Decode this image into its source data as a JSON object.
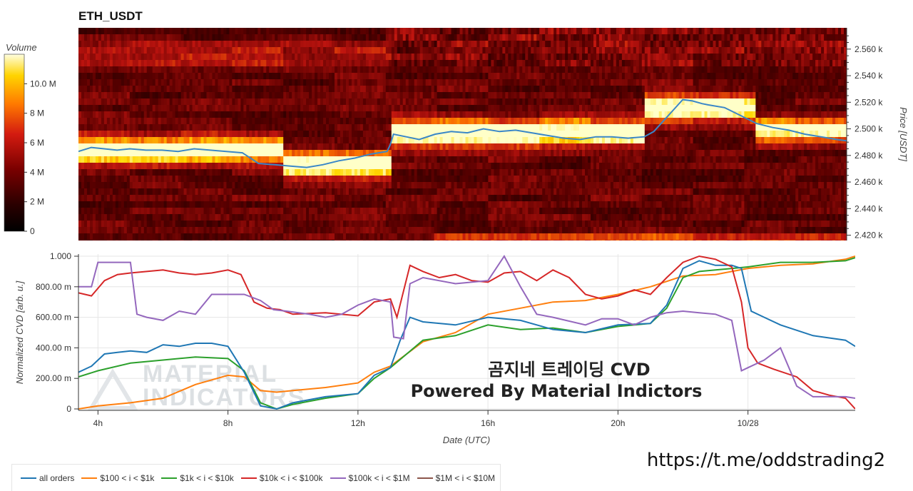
{
  "chart_data": [
    {
      "type": "heatmap",
      "title": "ETH_USDT",
      "ylabel": "Price [USDT]",
      "colorbar_label": "Volume",
      "colorbar_ticks": [
        "10.0 M",
        "8 M",
        "6 M",
        "4 M",
        "2 M",
        "0"
      ],
      "colorbar_values": [
        10,
        8,
        6,
        4,
        2,
        0
      ],
      "colorbar_range": [
        0,
        12
      ],
      "y_ticks": [
        "2.560 k",
        "2.540 k",
        "2.520 k",
        "2.500 k",
        "2.480 k",
        "2.460 k",
        "2.440 k",
        "2.420 k"
      ],
      "y_tick_values": [
        2560,
        2540,
        2520,
        2500,
        2480,
        2460,
        2440,
        2420
      ],
      "ylim": [
        2416,
        2576
      ],
      "x_range_hours": [
        3.4,
        27.3
      ],
      "price_series": {
        "x": [
          3.4,
          3.8,
          4.2,
          4.6,
          5.0,
          5.5,
          6.0,
          6.5,
          7.0,
          7.5,
          8.0,
          8.5,
          9.0,
          9.5,
          10.0,
          10.5,
          11.0,
          11.5,
          12.0,
          12.5,
          13.0,
          13.1,
          13.2,
          13.6,
          14.0,
          14.5,
          15.0,
          15.5,
          16.0,
          16.5,
          17.0,
          17.5,
          18.0,
          18.5,
          19.0,
          19.5,
          20.0,
          20.5,
          21.0,
          21.3,
          21.6,
          21.9,
          22.2,
          22.5,
          22.8,
          23.0,
          23.5,
          24.0,
          24.5,
          25.0,
          25.5,
          26.0,
          26.5,
          27.0,
          27.3
        ],
        "y": [
          2483,
          2486,
          2485,
          2484,
          2485,
          2484,
          2484,
          2483,
          2485,
          2484,
          2483,
          2482,
          2474,
          2473,
          2472,
          2471,
          2473,
          2476,
          2478,
          2481,
          2483,
          2488,
          2496,
          2494,
          2492,
          2496,
          2498,
          2497,
          2500,
          2498,
          2499,
          2497,
          2495,
          2493,
          2492,
          2494,
          2494,
          2493,
          2494,
          2498,
          2506,
          2514,
          2522,
          2521,
          2519,
          2518,
          2516,
          2510,
          2504,
          2501,
          2499,
          2496,
          2494,
          2492,
          2491
        ]
      },
      "bands": [
        {
          "x0": 3.4,
          "x1": 9.8,
          "center": 2484,
          "strength": 1.0
        },
        {
          "x0": 9.8,
          "x1": 13.1,
          "center": 2473,
          "strength": 0.9
        },
        {
          "x0": 13.1,
          "x1": 21.0,
          "center": 2497,
          "strength": 1.0
        },
        {
          "x0": 21.0,
          "x1": 24.5,
          "center": 2516,
          "strength": 1.0
        },
        {
          "x0": 24.5,
          "x1": 27.3,
          "center": 2499,
          "strength": 0.85
        }
      ]
    },
    {
      "type": "line",
      "ylabel": "Normalized CVD [arb. u.]",
      "xlabel": "Date (UTC)",
      "x_ticks": [
        "4h",
        "8h",
        "12h",
        "16h",
        "20h",
        "10/28"
      ],
      "x_tick_values": [
        4,
        8,
        12,
        16,
        20,
        24
      ],
      "y_ticks": [
        "1.000",
        "800.00 m",
        "600.00 m",
        "400.00 m",
        "200.00 m",
        "0"
      ],
      "y_tick_values": [
        1,
        0.8,
        0.6,
        0.4,
        0.2,
        0
      ],
      "ylim": [
        0,
        1
      ],
      "xlim": [
        3.4,
        27.3
      ],
      "series": [
        {
          "name": "all orders",
          "color": "#1f77b4",
          "x": [
            3.4,
            3.8,
            4.2,
            4.6,
            5.0,
            5.5,
            6.0,
            6.5,
            7.0,
            7.5,
            8.0,
            8.5,
            9.0,
            9.5,
            10.0,
            11.0,
            12.0,
            12.5,
            13.0,
            13.3,
            13.6,
            14.0,
            15.0,
            16.0,
            17.0,
            18.0,
            19.0,
            20.0,
            21.0,
            21.5,
            22.0,
            22.5,
            23.0,
            23.5,
            23.8,
            24.1,
            24.5,
            25.0,
            26.0,
            27.0,
            27.3
          ],
          "y": [
            0.24,
            0.28,
            0.36,
            0.37,
            0.38,
            0.37,
            0.42,
            0.41,
            0.43,
            0.43,
            0.41,
            0.24,
            0.02,
            0.0,
            0.04,
            0.08,
            0.1,
            0.22,
            0.27,
            0.45,
            0.6,
            0.57,
            0.55,
            0.6,
            0.58,
            0.52,
            0.5,
            0.55,
            0.56,
            0.68,
            0.92,
            0.97,
            0.94,
            0.94,
            0.92,
            0.64,
            0.6,
            0.55,
            0.48,
            0.45,
            0.41
          ]
        },
        {
          "name": "$100 < i < $1k",
          "color": "#ff7f0e",
          "x": [
            3.4,
            4.0,
            5.0,
            6.0,
            7.0,
            8.0,
            8.5,
            9.0,
            9.5,
            10.0,
            11.0,
            12.0,
            12.5,
            13.0,
            14.0,
            15.0,
            16.0,
            17.0,
            18.0,
            19.0,
            20.0,
            21.0,
            22.0,
            23.0,
            24.0,
            25.0,
            26.0,
            27.0,
            27.3
          ],
          "y": [
            0.0,
            0.02,
            0.04,
            0.07,
            0.16,
            0.22,
            0.21,
            0.12,
            0.11,
            0.12,
            0.14,
            0.17,
            0.24,
            0.28,
            0.44,
            0.5,
            0.62,
            0.66,
            0.7,
            0.71,
            0.75,
            0.8,
            0.87,
            0.88,
            0.92,
            0.94,
            0.95,
            0.98,
            1.0
          ]
        },
        {
          "name": "$1k < i < $10k",
          "color": "#2ca02c",
          "x": [
            3.4,
            4.0,
            5.0,
            6.0,
            7.0,
            8.0,
            8.5,
            9.0,
            9.5,
            10.0,
            11.0,
            12.0,
            12.5,
            13.0,
            14.0,
            15.0,
            16.0,
            17.0,
            18.0,
            19.0,
            20.0,
            21.0,
            21.5,
            22.0,
            22.5,
            23.0,
            24.0,
            25.0,
            26.0,
            27.0,
            27.3
          ],
          "y": [
            0.21,
            0.25,
            0.3,
            0.32,
            0.34,
            0.33,
            0.25,
            0.04,
            0.0,
            0.03,
            0.07,
            0.1,
            0.2,
            0.27,
            0.45,
            0.48,
            0.55,
            0.52,
            0.53,
            0.5,
            0.54,
            0.56,
            0.66,
            0.86,
            0.9,
            0.91,
            0.93,
            0.96,
            0.96,
            0.97,
            0.99
          ]
        },
        {
          "name": "$10k < i < $100k",
          "color": "#d62728",
          "x": [
            3.4,
            3.8,
            4.2,
            4.6,
            5.0,
            5.5,
            6.0,
            6.5,
            7.0,
            7.5,
            8.0,
            8.4,
            8.8,
            9.2,
            9.6,
            10.0,
            11.0,
            12.0,
            12.5,
            13.0,
            13.2,
            13.6,
            14.0,
            14.5,
            15.0,
            15.5,
            16.0,
            16.5,
            17.0,
            17.5,
            18.0,
            18.5,
            19.0,
            19.5,
            20.0,
            20.5,
            21.0,
            21.5,
            21.8,
            22.0,
            22.5,
            23.0,
            23.5,
            23.8,
            24.0,
            24.3,
            24.8,
            25.5,
            26.0,
            26.5,
            27.0,
            27.3
          ],
          "y": [
            0.76,
            0.74,
            0.84,
            0.88,
            0.89,
            0.9,
            0.91,
            0.89,
            0.88,
            0.89,
            0.91,
            0.88,
            0.7,
            0.66,
            0.65,
            0.62,
            0.63,
            0.61,
            0.7,
            0.72,
            0.6,
            0.94,
            0.9,
            0.86,
            0.88,
            0.84,
            0.83,
            0.89,
            0.9,
            0.84,
            0.91,
            0.86,
            0.75,
            0.72,
            0.74,
            0.78,
            0.75,
            0.86,
            0.92,
            0.96,
            1.0,
            0.98,
            0.93,
            0.7,
            0.4,
            0.3,
            0.26,
            0.21,
            0.12,
            0.09,
            0.07,
            0.0
          ]
        },
        {
          "name": "$100k < i < $1M",
          "color": "#9467bd",
          "x": [
            3.4,
            3.8,
            4.0,
            4.5,
            5.0,
            5.2,
            5.5,
            6.0,
            6.5,
            7.0,
            7.5,
            8.0,
            8.5,
            9.0,
            9.4,
            9.8,
            10.5,
            11.0,
            11.5,
            12.0,
            12.5,
            13.0,
            13.1,
            13.4,
            13.6,
            14.0,
            15.0,
            16.0,
            16.5,
            17.0,
            17.5,
            18.0,
            19.0,
            19.5,
            20.0,
            20.5,
            21.0,
            21.5,
            22.0,
            22.5,
            23.0,
            23.5,
            23.8,
            24.0,
            24.5,
            25.0,
            25.5,
            26.0,
            26.5,
            27.0,
            27.3
          ],
          "y": [
            0.8,
            0.8,
            0.96,
            0.96,
            0.96,
            0.62,
            0.6,
            0.58,
            0.64,
            0.62,
            0.75,
            0.75,
            0.75,
            0.71,
            0.65,
            0.64,
            0.62,
            0.6,
            0.62,
            0.68,
            0.72,
            0.7,
            0.47,
            0.46,
            0.82,
            0.86,
            0.82,
            0.84,
            1.0,
            0.8,
            0.62,
            0.6,
            0.55,
            0.59,
            0.59,
            0.55,
            0.6,
            0.63,
            0.64,
            0.63,
            0.62,
            0.58,
            0.25,
            0.27,
            0.32,
            0.4,
            0.15,
            0.08,
            0.08,
            0.08,
            0.07
          ]
        },
        {
          "name": "$1M < i < $10M",
          "color": "#8c564b",
          "x": [],
          "y": []
        }
      ]
    }
  ],
  "overlay": {
    "korean_title": "곰지네 트레이딩 CVD",
    "powered_by": "Powered By Material Indictors",
    "watermark_line1": "MATERIAL",
    "watermark_line2": "INDICATORS",
    "url": "https://t.me/oddstrading2"
  },
  "colors": {
    "heat_low": "#1a0000",
    "heat_mid": "#b01010",
    "heat_high": "#ffff80",
    "price_line": "#3a87c8"
  }
}
